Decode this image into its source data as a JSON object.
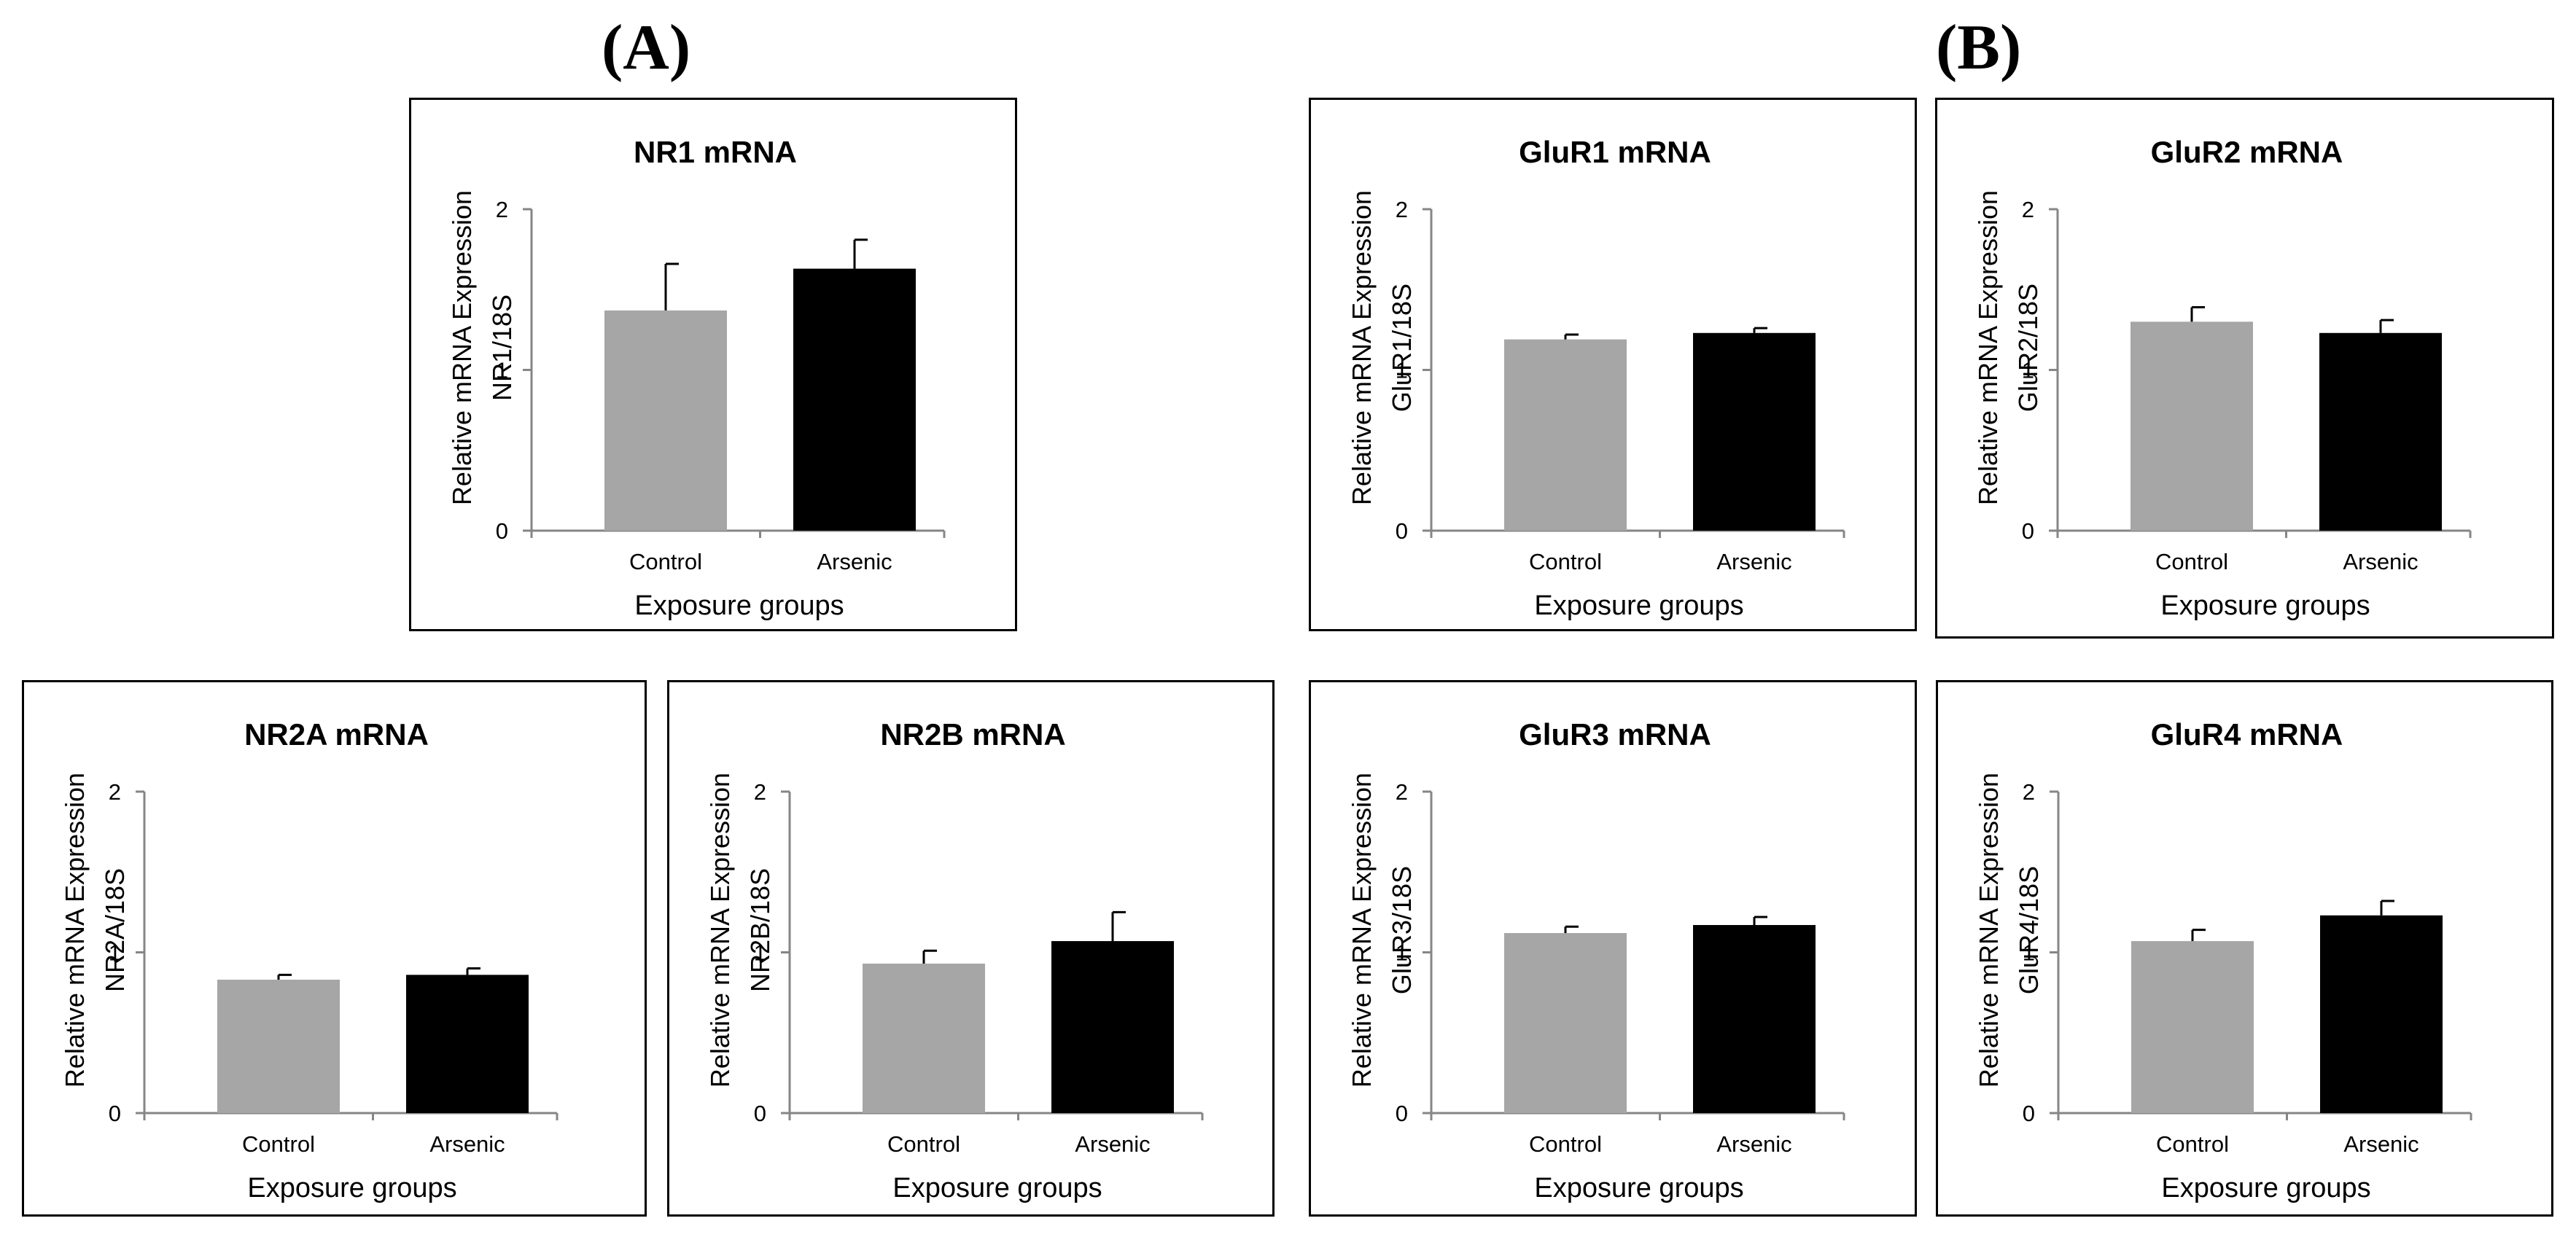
{
  "panel_labels": {
    "a": "(A)",
    "b": "(B)"
  },
  "colors": {
    "control": "#a6a6a6",
    "arsenic": "#000000",
    "axis": "#868686"
  },
  "chart_data": [
    {
      "id": "nr1",
      "type": "bar",
      "title": "NR1 mRNA",
      "ylabel_line1": "Relative mRNA Expression",
      "ylabel_line2": "NR1/18S",
      "xlabel": "Exposure groups",
      "categories": [
        "Control",
        "Arsenic"
      ],
      "values": [
        1.37,
        1.63
      ],
      "errors": [
        0.29,
        0.18
      ],
      "ylim": [
        0,
        2
      ],
      "yticks": [
        "0",
        "1",
        "2"
      ]
    },
    {
      "id": "glur1",
      "type": "bar",
      "title": "GluR1 mRNA",
      "ylabel_line1": "Relative mRNA Expression",
      "ylabel_line2": "GluR1/18S",
      "xlabel": "Exposure groups",
      "categories": [
        "Control",
        "Arsenic"
      ],
      "values": [
        1.19,
        1.23
      ],
      "errors": [
        0.03,
        0.03
      ],
      "ylim": [
        0,
        2
      ],
      "yticks": [
        "0",
        "1",
        "2"
      ]
    },
    {
      "id": "glur2",
      "type": "bar",
      "title": "GluR2 mRNA",
      "ylabel_line1": "Relative mRNA Expression",
      "ylabel_line2": "GluR2/18S",
      "xlabel": "Exposure groups",
      "categories": [
        "Control",
        "Arsenic"
      ],
      "values": [
        1.3,
        1.23
      ],
      "errors": [
        0.09,
        0.08
      ],
      "ylim": [
        0,
        2
      ],
      "yticks": [
        "0",
        "1",
        "2"
      ]
    },
    {
      "id": "nr2a",
      "type": "bar",
      "title": "NR2A mRNA",
      "ylabel_line1": "Relative mRNA Expression",
      "ylabel_line2": "NR2A/18S",
      "xlabel": "Exposure groups",
      "categories": [
        "Control",
        "Arsenic"
      ],
      "values": [
        0.83,
        0.86
      ],
      "errors": [
        0.03,
        0.04
      ],
      "ylim": [
        0,
        2
      ],
      "yticks": [
        "0",
        "1",
        "2"
      ]
    },
    {
      "id": "nr2b",
      "type": "bar",
      "title": "NR2B mRNA",
      "ylabel_line1": "Relative mRNA Expression",
      "ylabel_line2": "NR2B/18S",
      "xlabel": "Exposure groups",
      "categories": [
        "Control",
        "Arsenic"
      ],
      "values": [
        0.93,
        1.07
      ],
      "errors": [
        0.08,
        0.18
      ],
      "ylim": [
        0,
        2
      ],
      "yticks": [
        "0",
        "1",
        "2"
      ]
    },
    {
      "id": "glur3",
      "type": "bar",
      "title": "GluR3 mRNA",
      "ylabel_line1": "Relative mRNA Expression",
      "ylabel_line2": "GluR3/18S",
      "xlabel": "Exposure groups",
      "categories": [
        "Control",
        "Arsenic"
      ],
      "values": [
        1.12,
        1.17
      ],
      "errors": [
        0.04,
        0.05
      ],
      "ylim": [
        0,
        2
      ],
      "yticks": [
        "0",
        "1",
        "2"
      ]
    },
    {
      "id": "glur4",
      "type": "bar",
      "title": "GluR4 mRNA",
      "ylabel_line1": "Relative mRNA Expression",
      "ylabel_line2": "GluR4/18S",
      "xlabel": "Exposure groups",
      "categories": [
        "Control",
        "Arsenic"
      ],
      "values": [
        1.07,
        1.23
      ],
      "errors": [
        0.07,
        0.09
      ],
      "ylim": [
        0,
        2
      ],
      "yticks": [
        "0",
        "1",
        "2"
      ]
    }
  ]
}
